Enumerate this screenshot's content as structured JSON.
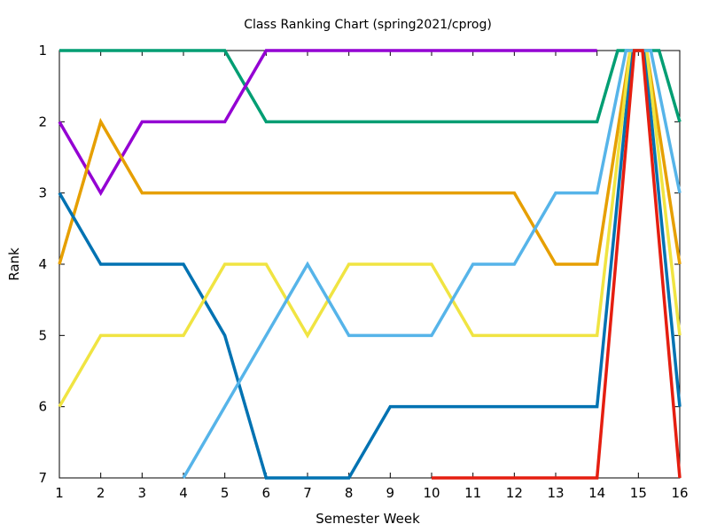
{
  "chart_data": {
    "type": "line",
    "title": "Class Ranking Chart (spring2021/cprog)",
    "xlabel": "Semester Week",
    "ylabel": "Rank",
    "xlim": [
      1,
      16
    ],
    "ylim": [
      1,
      7
    ],
    "y_inverted": true,
    "grid": false,
    "legend": "none",
    "x_ticks": [
      "1",
      "2",
      "3",
      "4",
      "5",
      "6",
      "7",
      "8",
      "9",
      "10",
      "11",
      "12",
      "13",
      "14",
      "15",
      "16"
    ],
    "y_ticks": [
      "1",
      "2",
      "3",
      "4",
      "5",
      "6",
      "7"
    ],
    "series": [
      {
        "color": "#009e73",
        "points": [
          [
            1,
            1
          ],
          [
            2,
            1
          ],
          [
            3,
            1
          ],
          [
            4,
            1
          ],
          [
            5,
            1
          ],
          [
            6,
            2
          ],
          [
            7,
            2
          ],
          [
            8,
            2
          ],
          [
            9,
            2
          ],
          [
            10,
            2
          ],
          [
            11,
            2
          ],
          [
            12,
            2
          ],
          [
            13,
            2
          ],
          [
            14,
            2
          ],
          [
            14.5,
            1
          ],
          [
            15.5,
            1
          ],
          [
            16,
            2
          ]
        ]
      },
      {
        "color": "#9400d3",
        "points": [
          [
            1,
            2
          ],
          [
            2,
            3
          ],
          [
            3,
            2
          ],
          [
            4,
            2
          ],
          [
            5,
            2
          ],
          [
            6,
            1
          ],
          [
            7,
            1
          ],
          [
            8,
            1
          ],
          [
            9,
            1
          ],
          [
            10,
            1
          ],
          [
            11,
            1
          ],
          [
            12,
            1
          ],
          [
            13,
            1
          ],
          [
            14,
            1
          ]
        ]
      },
      {
        "color": "#e69f00",
        "points": [
          [
            1,
            4
          ],
          [
            2,
            2
          ],
          [
            3,
            3
          ],
          [
            4,
            3
          ],
          [
            5,
            3
          ],
          [
            6,
            3
          ],
          [
            7,
            3
          ],
          [
            8,
            3
          ],
          [
            9,
            3
          ],
          [
            10,
            3
          ],
          [
            11,
            3
          ],
          [
            12,
            3
          ],
          [
            13,
            4
          ],
          [
            14,
            4
          ],
          [
            14.8,
            1
          ],
          [
            15.2,
            1
          ],
          [
            16,
            4
          ]
        ]
      },
      {
        "color": "#0072b2",
        "points": [
          [
            1,
            3
          ],
          [
            2,
            4
          ],
          [
            3,
            4
          ],
          [
            4,
            4
          ],
          [
            5,
            5
          ],
          [
            6,
            7
          ],
          [
            7,
            7
          ],
          [
            8,
            7
          ],
          [
            9,
            6
          ],
          [
            10,
            6
          ],
          [
            11,
            6
          ],
          [
            12,
            6
          ],
          [
            13,
            6
          ],
          [
            14,
            6
          ],
          [
            14.85,
            1
          ],
          [
            15.15,
            1
          ],
          [
            16,
            6
          ]
        ]
      },
      {
        "color": "#f0e442",
        "points": [
          [
            1,
            6
          ],
          [
            2,
            5
          ],
          [
            3,
            5
          ],
          [
            4,
            5
          ],
          [
            5,
            4
          ],
          [
            6,
            4
          ],
          [
            7,
            5
          ],
          [
            8,
            4
          ],
          [
            9,
            4
          ],
          [
            10,
            4
          ],
          [
            11,
            5
          ],
          [
            12,
            5
          ],
          [
            13,
            5
          ],
          [
            14,
            5
          ],
          [
            14.8,
            1
          ],
          [
            15.2,
            1
          ],
          [
            16,
            5
          ]
        ]
      },
      {
        "color": "#56b4e9",
        "points": [
          [
            4,
            7
          ],
          [
            5,
            6
          ],
          [
            6,
            5
          ],
          [
            7,
            4
          ],
          [
            8,
            5
          ],
          [
            9,
            5
          ],
          [
            10,
            5
          ],
          [
            11,
            4
          ],
          [
            12,
            4
          ],
          [
            13,
            3
          ],
          [
            14,
            3
          ],
          [
            14.7,
            1
          ],
          [
            15.3,
            1
          ],
          [
            16,
            3
          ]
        ]
      },
      {
        "color": "#e51e10",
        "points": [
          [
            10,
            7
          ],
          [
            11,
            7
          ],
          [
            12,
            7
          ],
          [
            13,
            7
          ],
          [
            14,
            7
          ],
          [
            14.9,
            1
          ],
          [
            15.1,
            1
          ],
          [
            16,
            7
          ]
        ]
      }
    ]
  }
}
